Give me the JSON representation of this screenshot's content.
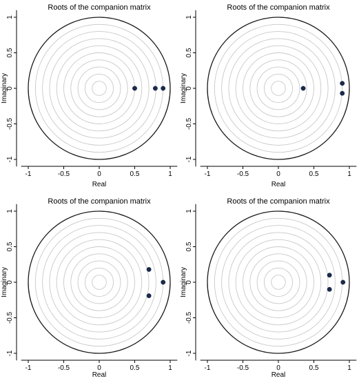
{
  "colors": {
    "background": "#ffffff",
    "unit_circle": "#1a1a1a",
    "inner_circles": "#c8c8c8",
    "axis": "#000000",
    "point": "#1a2a4a"
  },
  "chart_data": [
    {
      "type": "scatter",
      "title": "Roots of the companion matrix",
      "xlabel": "Real",
      "ylabel": "Imaginary",
      "xlim": [
        -1.1,
        1.1
      ],
      "ylim": [
        -1.1,
        1.1
      ],
      "xticks": [
        -1,
        -0.5,
        0,
        0.5,
        1
      ],
      "xtick_labels": [
        "-1",
        "-0.5",
        "0",
        "0.5",
        "1"
      ],
      "yticks": [
        -1,
        -0.5,
        0,
        0.5,
        1
      ],
      "ytick_labels": [
        "-1",
        "-0.5",
        "0",
        "0.5",
        "1"
      ],
      "unit_circle": true,
      "inner_circles": 9,
      "points": [
        {
          "x": 0.5,
          "y": 0.0
        },
        {
          "x": 0.79,
          "y": 0.0
        },
        {
          "x": 0.9,
          "y": 0.0
        }
      ]
    },
    {
      "type": "scatter",
      "title": "Roots of the companion matrix",
      "xlabel": "Real",
      "ylabel": "Imaginary",
      "xlim": [
        -1.1,
        1.1
      ],
      "ylim": [
        -1.1,
        1.1
      ],
      "xticks": [
        -1,
        -0.5,
        0,
        0.5,
        1
      ],
      "xtick_labels": [
        "-1",
        "-0.5",
        "0",
        "0.5",
        "1"
      ],
      "yticks": [
        -1,
        -0.5,
        0,
        0.5,
        1
      ],
      "ytick_labels": [
        "-1",
        "-0.5",
        "0",
        "0.5",
        "1"
      ],
      "unit_circle": true,
      "inner_circles": 9,
      "points": [
        {
          "x": 0.35,
          "y": 0.0
        },
        {
          "x": 0.9,
          "y": 0.07
        },
        {
          "x": 0.9,
          "y": -0.07
        }
      ]
    },
    {
      "type": "scatter",
      "title": "Roots of the companion matrix",
      "xlabel": "Real",
      "ylabel": "Imaginary",
      "xlim": [
        -1.1,
        1.1
      ],
      "ylim": [
        -1.1,
        1.1
      ],
      "xticks": [
        -1,
        -0.5,
        0,
        0.5,
        1
      ],
      "xtick_labels": [
        "-1",
        "-0.5",
        "0",
        "0.5",
        "1"
      ],
      "yticks": [
        -1,
        -0.5,
        0,
        0.5,
        1
      ],
      "ytick_labels": [
        "-1",
        "-0.5",
        "0",
        "0.5",
        "1"
      ],
      "unit_circle": true,
      "inner_circles": 9,
      "points": [
        {
          "x": 0.7,
          "y": 0.18
        },
        {
          "x": 0.7,
          "y": -0.19
        },
        {
          "x": 0.9,
          "y": 0.0
        }
      ]
    },
    {
      "type": "scatter",
      "title": "Roots of the companion matrix",
      "xlabel": "Real",
      "ylabel": "Imaginary",
      "xlim": [
        -1.1,
        1.1
      ],
      "ylim": [
        -1.1,
        1.1
      ],
      "xticks": [
        -1,
        -0.5,
        0,
        0.5,
        1
      ],
      "xtick_labels": [
        "-1",
        "-0.5",
        "0",
        "0.5",
        "1"
      ],
      "yticks": [
        -1,
        -0.5,
        0,
        0.5,
        1
      ],
      "ytick_labels": [
        "-1",
        "-0.5",
        "0",
        "0.5",
        "1"
      ],
      "unit_circle": true,
      "inner_circles": 9,
      "points": [
        {
          "x": 0.72,
          "y": 0.1
        },
        {
          "x": 0.72,
          "y": -0.1
        },
        {
          "x": 0.91,
          "y": 0.0
        }
      ]
    }
  ]
}
